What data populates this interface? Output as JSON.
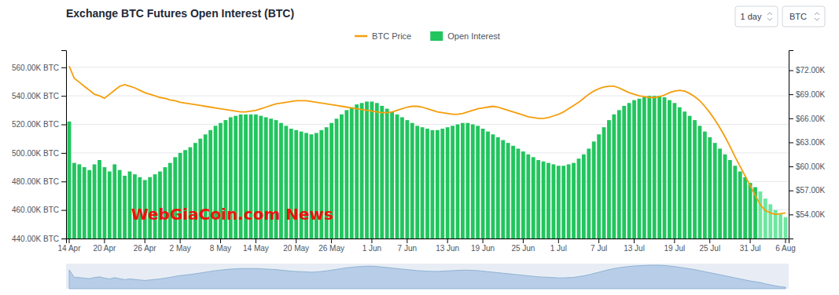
{
  "chart_data": {
    "type": "bar",
    "title": "Exchange BTC Futures Open Interest (BTC)",
    "categories": [
      "14 Apr",
      null,
      null,
      null,
      null,
      null,
      null,
      "20 Apr",
      null,
      null,
      null,
      null,
      null,
      null,
      null,
      "26 Apr",
      null,
      null,
      null,
      null,
      null,
      null,
      "2 May",
      null,
      null,
      null,
      null,
      null,
      null,
      null,
      "8 May",
      null,
      null,
      null,
      null,
      null,
      null,
      "14 May",
      null,
      null,
      null,
      null,
      null,
      null,
      null,
      "20 May",
      null,
      null,
      null,
      null,
      null,
      null,
      "26 May",
      null,
      null,
      null,
      null,
      null,
      null,
      null,
      "1 Jun",
      null,
      null,
      null,
      null,
      null,
      null,
      "7 Jun",
      null,
      null,
      null,
      null,
      null,
      null,
      null,
      "13 Jun",
      null,
      null,
      null,
      null,
      null,
      null,
      "19 Jun",
      null,
      null,
      null,
      null,
      null,
      null,
      null,
      "25 Jun",
      null,
      null,
      null,
      null,
      null,
      null,
      "1 Jul",
      null,
      null,
      null,
      null,
      null,
      null,
      null,
      "7 Jul",
      null,
      null,
      null,
      null,
      null,
      null,
      "13 Jul",
      null,
      null,
      null,
      null,
      null,
      null,
      null,
      "19 Jul",
      null,
      null,
      null,
      null,
      null,
      null,
      "25 Jul",
      null,
      null,
      null,
      null,
      null,
      null,
      null,
      "31 Jul",
      null,
      null,
      null,
      null,
      null,
      null,
      "6 Aug"
    ],
    "series": [
      {
        "name": "Open Interest",
        "type": "bar",
        "color": "#22c55e",
        "colors": [
          "#22c55e",
          "#22c55e",
          "#22c55e",
          "#22c55e",
          "#22c55e",
          "#22c55e",
          "#22c55e",
          "#22c55e",
          "#22c55e",
          "#22c55e",
          "#22c55e",
          "#22c55e",
          "#22c55e",
          "#22c55e",
          "#22c55e",
          "#22c55e",
          "#22c55e",
          "#22c55e",
          "#22c55e",
          "#22c55e",
          "#22c55e",
          "#22c55e",
          "#22c55e",
          "#22c55e",
          "#22c55e",
          "#22c55e",
          "#22c55e",
          "#22c55e",
          "#22c55e",
          "#22c55e",
          "#22c55e",
          "#22c55e",
          "#22c55e",
          "#22c55e",
          "#22c55e",
          "#22c55e",
          "#22c55e",
          "#22c55e",
          "#22c55e",
          "#22c55e",
          "#22c55e",
          "#22c55e",
          "#22c55e",
          "#22c55e",
          "#22c55e",
          "#22c55e",
          "#22c55e",
          "#22c55e",
          "#22c55e",
          "#22c55e",
          "#22c55e",
          "#22c55e",
          "#22c55e",
          "#22c55e",
          "#22c55e",
          "#22c55e",
          "#22c55e",
          "#22c55e",
          "#22c55e",
          "#22c55e",
          "#22c55e",
          "#22c55e",
          "#22c55e",
          "#22c55e",
          "#22c55e",
          "#22c55e",
          "#22c55e",
          "#22c55e",
          "#22c55e",
          "#22c55e",
          "#22c55e",
          "#22c55e",
          "#22c55e",
          "#22c55e",
          "#22c55e",
          "#22c55e",
          "#22c55e",
          "#22c55e",
          "#22c55e",
          "#22c55e",
          "#22c55e",
          "#22c55e",
          "#22c55e",
          "#22c55e",
          "#22c55e",
          "#22c55e",
          "#22c55e",
          "#22c55e",
          "#22c55e",
          "#22c55e",
          "#22c55e",
          "#22c55e",
          "#22c55e",
          "#22c55e",
          "#22c55e",
          "#22c55e",
          "#22c55e",
          "#22c55e",
          "#22c55e",
          "#22c55e",
          "#22c55e",
          "#22c55e",
          "#22c55e",
          "#22c55e",
          "#22c55e",
          "#22c55e",
          "#22c55e",
          "#22c55e",
          "#22c55e",
          "#22c55e",
          "#22c55e",
          "#22c55e",
          "#22c55e",
          "#22c55e",
          "#22c55e",
          "#22c55e",
          "#22c55e",
          "#22c55e",
          "#22c55e",
          "#22c55e",
          "#22c55e",
          "#22c55e",
          "#22c55e",
          "#22c55e",
          "#22c55e",
          "#22c55e",
          "#22c55e",
          "#22c55e",
          "#22c55e",
          "#22c55e",
          "#22c55e",
          "#22c55e",
          "#22c55e",
          "#22c55e",
          "#22c55e",
          "#22c55e",
          "#22c55e",
          "#6ee7a0",
          "#6ee7a0",
          "#6ee7a0",
          "#6ee7a0",
          "#6ee7a0",
          "#6ee7a0"
        ],
        "values": [
          522000,
          493000,
          492000,
          490000,
          488000,
          492000,
          495000,
          490000,
          487000,
          492000,
          488000,
          484000,
          487000,
          485000,
          483000,
          481000,
          483000,
          485000,
          487000,
          490000,
          493000,
          497000,
          500000,
          502000,
          504000,
          507000,
          510000,
          513000,
          516000,
          519000,
          521000,
          523000,
          525000,
          526000,
          527000,
          527000,
          527000,
          527000,
          526000,
          525000,
          524000,
          523000,
          521000,
          519000,
          517000,
          516000,
          515000,
          514000,
          513000,
          514000,
          516000,
          518000,
          521000,
          524000,
          527000,
          530000,
          532000,
          534000,
          535000,
          536000,
          536000,
          535000,
          533000,
          531000,
          529000,
          527000,
          525000,
          523000,
          521000,
          519000,
          518000,
          517000,
          516000,
          516000,
          517000,
          518000,
          519000,
          520000,
          521000,
          521000,
          520000,
          519000,
          517000,
          515000,
          513000,
          511000,
          509000,
          507000,
          505000,
          503000,
          501000,
          499000,
          497000,
          495000,
          494000,
          493000,
          492000,
          491000,
          491000,
          492000,
          493000,
          496000,
          499000,
          503000,
          508000,
          513000,
          518000,
          523000,
          527000,
          530000,
          533000,
          535000,
          537000,
          538000,
          539000,
          540000,
          540000,
          540000,
          539000,
          537000,
          535000,
          532000,
          529000,
          526000,
          523000,
          519000,
          515000,
          511000,
          507000,
          503000,
          499000,
          495000,
          491000,
          487000,
          483000,
          479000,
          476000,
          473000,
          468000,
          464000,
          460000,
          457000,
          455000
        ]
      },
      {
        "name": "BTC Price",
        "type": "line",
        "axis": "y2",
        "color": "#f59e0b",
        "values": [
          72500,
          71000,
          70500,
          70000,
          69500,
          69000,
          68800,
          68500,
          69000,
          69500,
          70000,
          70200,
          70000,
          69800,
          69500,
          69200,
          69000,
          68800,
          68600,
          68500,
          68300,
          68200,
          68000,
          67900,
          67800,
          67700,
          67600,
          67500,
          67400,
          67300,
          67200,
          67100,
          67000,
          66900,
          66800,
          66800,
          66900,
          67000,
          67200,
          67400,
          67600,
          67800,
          67900,
          68000,
          68100,
          68200,
          68200,
          68200,
          68100,
          68000,
          67900,
          67800,
          67700,
          67600,
          67500,
          67400,
          67300,
          67200,
          67100,
          67000,
          66900,
          66800,
          66700,
          66700,
          66800,
          67000,
          67200,
          67400,
          67500,
          67500,
          67400,
          67200,
          67000,
          66800,
          66700,
          66600,
          66500,
          66500,
          66600,
          66800,
          67000,
          67200,
          67300,
          67400,
          67500,
          67400,
          67200,
          67000,
          66800,
          66600,
          66400,
          66200,
          66100,
          66000,
          66000,
          66100,
          66300,
          66500,
          66800,
          67200,
          67600,
          68000,
          68500,
          69000,
          69400,
          69700,
          69900,
          70000,
          70000,
          69800,
          69500,
          69200,
          69000,
          68800,
          68700,
          68600,
          68600,
          68700,
          68900,
          69200,
          69400,
          69500,
          69400,
          69100,
          68700,
          68200,
          67500,
          66700,
          65800,
          64800,
          63700,
          62500,
          61200,
          60000,
          58800,
          57600,
          56400,
          55200,
          54500,
          54200,
          54000,
          54100,
          54200
        ]
      }
    ],
    "ylim": [
      440000,
      572000
    ],
    "yticks": [
      {
        "value": 440000,
        "label": "440.00K BTC"
      },
      {
        "value": 460000,
        "label": "460.00K BTC"
      },
      {
        "value": 480000,
        "label": "480.00K BTC"
      },
      {
        "value": 500000,
        "label": "500.00K BTC"
      },
      {
        "value": 520000,
        "label": "520.00K BTC"
      },
      {
        "value": 540000,
        "label": "540.00K BTC"
      },
      {
        "value": 560000,
        "label": "560.00K BTC"
      }
    ],
    "y2lim": [
      51000,
      74500
    ],
    "y2ticks": [
      {
        "value": 54000,
        "label": "$54.00K"
      },
      {
        "value": 57000,
        "label": "$57.00K"
      },
      {
        "value": 60000,
        "label": "$60.00K"
      },
      {
        "value": 63000,
        "label": "$63.00K"
      },
      {
        "value": 66000,
        "label": "$66.00K"
      },
      {
        "value": 69000,
        "label": "$69.00K"
      },
      {
        "value": 72000,
        "label": "$72.00K"
      }
    ],
    "grid": true,
    "legend": "top",
    "annotations": [
      {
        "text": "WebGiaCoin.com News",
        "color": "red"
      }
    ],
    "buttons": [
      "1 day",
      "BTC"
    ]
  }
}
